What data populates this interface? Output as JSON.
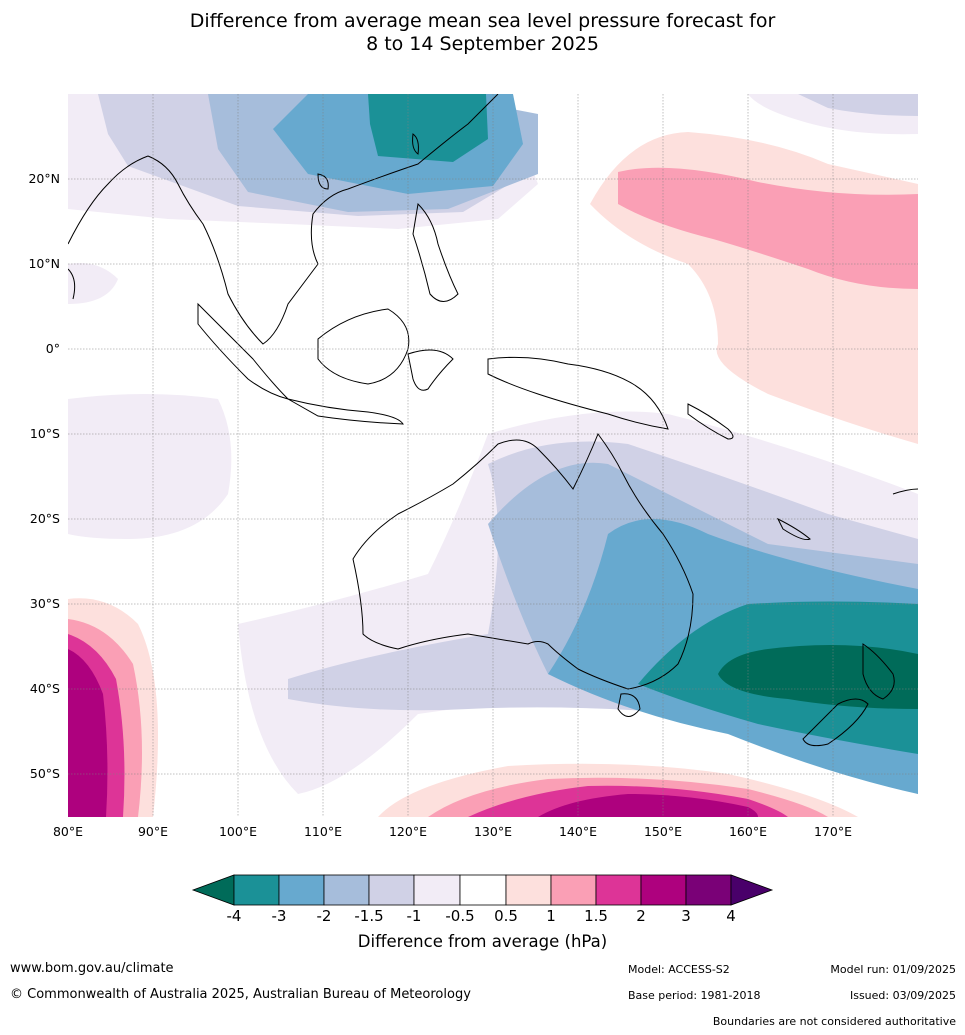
{
  "title": {
    "line1": "Difference from average mean sea level pressure forecast for",
    "line2": "8 to 14 September 2025"
  },
  "map": {
    "lon_range": [
      80,
      180
    ],
    "lat_range": [
      -55,
      30
    ],
    "lat_labels": [
      "20°N",
      "10°N",
      "0°",
      "10°S",
      "20°S",
      "30°S",
      "40°S",
      "50°S"
    ],
    "lon_labels": [
      "80°E",
      "90°E",
      "100°E",
      "110°E",
      "120°E",
      "130°E",
      "140°E",
      "150°E",
      "160°E",
      "170°E"
    ]
  },
  "colorbar": {
    "label": "Difference from average (hPa)",
    "ticks": [
      "-4",
      "-3",
      "-2",
      "-1.5",
      "-1",
      "-0.5",
      "0.5",
      "1",
      "1.5",
      "2",
      "3",
      "4"
    ],
    "colors": {
      "lt_-4": "#006b59",
      "-4_-3": "#1b9197",
      "-3_-2": "#67a9cf",
      "-2_-1.5": "#a6bddb",
      "-1.5_-1": "#d0d1e6",
      "-1_-0.5": "#f2ecf6",
      "-0.5_0.5": "#ffffff",
      "0.5_1": "#fde0dd",
      "1_1.5": "#fa9fb5",
      "1.5_2": "#dd3497",
      "2_3": "#ae017e",
      "3_4": "#7a0177",
      "gt_4": "#49006a"
    }
  },
  "footer": {
    "website": "www.bom.gov.au/climate",
    "copyright": "© Commonwealth of Australia 2025, Australian Bureau of Meteorology",
    "model": "Model: ACCESS-S2",
    "base_period": "Base period: 1981-2018",
    "model_run": "Model run: 01/09/2025",
    "issued": "Issued: 03/09/2025",
    "disclaimer": "Boundaries are not considered authoritative"
  }
}
